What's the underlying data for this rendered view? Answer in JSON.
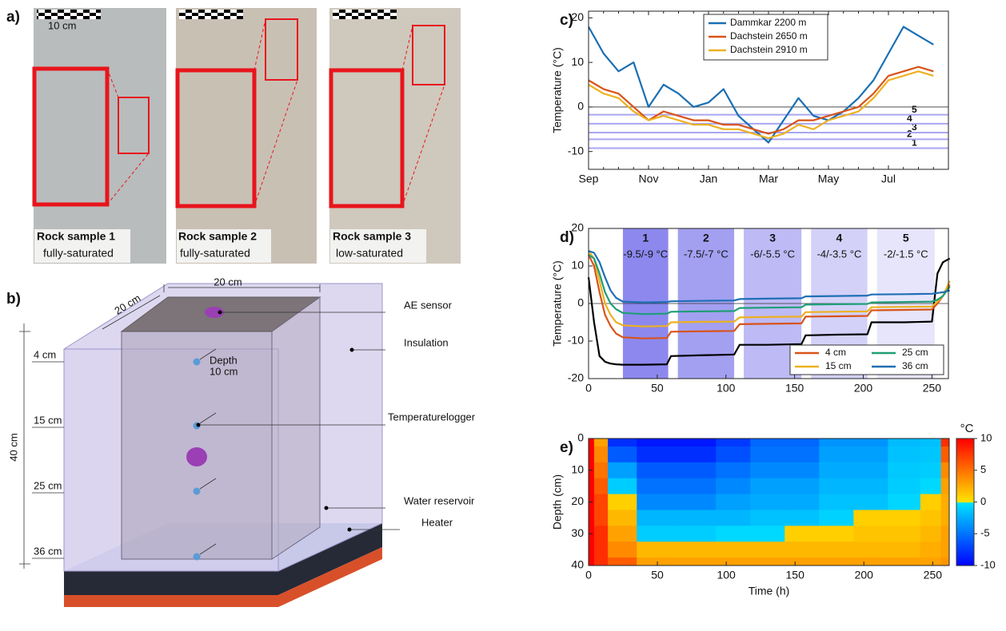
{
  "panel_a": {
    "label": "a)",
    "scale": "10 cm",
    "samples": [
      {
        "name": "Rock sample 1",
        "state": "fully-saturated"
      },
      {
        "name": "Rock sample 2",
        "state": "fully-saturated"
      },
      {
        "name": "Rock sample 3",
        "state": "low-saturated"
      }
    ]
  },
  "panel_b": {
    "label": "b)",
    "width": "20 cm",
    "depth": "20 cm",
    "height": "40 cm",
    "depths": [
      "4 cm",
      "15 cm",
      "25 cm",
      "36 cm"
    ],
    "logger_depth": [
      "Depth",
      "10 cm"
    ],
    "parts": {
      "sensor": "AE sensor",
      "insulation": "Insulation",
      "logger": "Temperaturelogger",
      "reservoir": "Water reservoir",
      "heater": "Heater"
    }
  },
  "chart_data": [
    {
      "type": "line",
      "label": "c)",
      "ylabel": "Temperature (°C)",
      "categories": [
        "Sep",
        null,
        null,
        null,
        "Nov",
        null,
        null,
        null,
        "Jan",
        null,
        null,
        null,
        "Mar",
        null,
        null,
        null,
        "May",
        null,
        null,
        null,
        "Jul",
        null,
        null,
        null
      ],
      "series": [
        {
          "name": "Dammkar 2200 m",
          "color": "#1a6fb3",
          "values": [
            18,
            12,
            8,
            10,
            0,
            5,
            3,
            0,
            1,
            4,
            -2,
            -5,
            -8,
            -3,
            2,
            -2,
            -3,
            -1,
            2,
            6,
            12,
            18,
            16,
            14
          ]
        },
        {
          "name": "Dachstein 2650 m",
          "color": "#d95319",
          "values": [
            6,
            4,
            3,
            0,
            -3,
            -1,
            -2,
            -3,
            -3,
            -4,
            -4,
            -5,
            -6,
            -5,
            -3,
            -3,
            -2,
            -1,
            0,
            3,
            7,
            8,
            9,
            8
          ]
        },
        {
          "name": "Dachstein 2910 m",
          "color": "#edb120",
          "values": [
            5,
            3,
            2,
            -1,
            -3,
            -2,
            -3,
            -4,
            -4,
            -5,
            -5,
            -6,
            -7,
            -6,
            -4,
            -5,
            -3,
            -2,
            -1,
            2,
            6,
            7,
            8,
            7
          ]
        }
      ],
      "reference_lines": [
        {
          "label": "1",
          "value": -9.25
        },
        {
          "label": "2",
          "value": -7.25
        },
        {
          "label": "3",
          "value": -5.75
        },
        {
          "label": "4",
          "value": -3.75
        },
        {
          "label": "5",
          "value": -1.75
        }
      ],
      "reference_color": "#a9a6f2",
      "zero_line": true,
      "ylim": [
        -14,
        21.5
      ],
      "yticks": [
        -10,
        0,
        10,
        20
      ],
      "legend": "top"
    },
    {
      "type": "line",
      "label": "d)",
      "ylabel": "Temperature (°C)",
      "x": [
        0,
        4,
        8,
        12,
        16,
        20,
        25,
        40,
        57,
        60,
        80,
        106,
        110,
        130,
        155,
        158,
        180,
        203,
        206,
        230,
        250,
        254,
        258,
        263
      ],
      "series": [
        {
          "color": "#000000",
          "values": [
            7,
            -5,
            -14,
            -15.5,
            -16,
            -16.2,
            -16.3,
            -16.3,
            -16.2,
            -14,
            -13.8,
            -13.6,
            -11,
            -11,
            -10.8,
            -8.5,
            -8.3,
            -8.2,
            -5,
            -5,
            -4.8,
            8,
            11,
            12
          ]
        },
        {
          "name": "4 cm",
          "color": "#d95319",
          "values": [
            13,
            10,
            3,
            -3,
            -6,
            -8,
            -9,
            -9.3,
            -9.2,
            -7.5,
            -7.4,
            -7.3,
            -5.5,
            -5.4,
            -5.3,
            -3.5,
            -3.4,
            -3.3,
            -1.8,
            -1.7,
            -1.6,
            0,
            2,
            5
          ]
        },
        {
          "name": "15 cm",
          "color": "#edb120",
          "values": [
            14,
            12,
            6,
            0,
            -3,
            -5,
            -5.8,
            -6.1,
            -6,
            -5,
            -4.9,
            -4.8,
            -3.7,
            -3.6,
            -3.5,
            -2.3,
            -2.2,
            -2.1,
            -1,
            -0.9,
            -0.8,
            0.5,
            2,
            6
          ]
        },
        {
          "name": "25 cm",
          "color": "#1f9e77",
          "values": [
            13,
            12,
            8,
            3,
            0,
            -1.5,
            -2.5,
            -2.8,
            -2.7,
            -2.2,
            -2.1,
            -2,
            -1.2,
            -1.1,
            -1,
            -0.3,
            -0.2,
            -0.1,
            0.3,
            0.4,
            0.5,
            1,
            2,
            4.5
          ]
        },
        {
          "name": "36 cm",
          "color": "#1f6fb4",
          "values": [
            14,
            13.5,
            11,
            7,
            3.5,
            1.5,
            0.5,
            0.3,
            0.4,
            0.6,
            0.7,
            0.8,
            1.2,
            1.3,
            1.4,
            1.9,
            2,
            2.1,
            2.4,
            2.5,
            2.6,
            2.8,
            3,
            3.5
          ]
        }
      ],
      "regions": [
        {
          "label": "1",
          "range": "-9.5/-9 °C",
          "x": [
            25,
            58
          ],
          "color": "#8c88ee"
        },
        {
          "label": "2",
          "range": "-7.5/-7 °C",
          "x": [
            65,
            106
          ],
          "color": "#a3a0f1"
        },
        {
          "label": "3",
          "range": "-6/-5.5 °C",
          "x": [
            113,
            155
          ],
          "color": "#bdbaf5"
        },
        {
          "label": "4",
          "range": "-4/-3.5 °C",
          "x": [
            162,
            203
          ],
          "color": "#d3d1f8"
        },
        {
          "label": "5",
          "range": "-2/-1.5 °C",
          "x": [
            210,
            252
          ],
          "color": "#e6e5fb"
        }
      ],
      "xlim": [
        0,
        262
      ],
      "xticks": [
        0,
        50,
        100,
        150,
        200,
        250
      ],
      "ylim": [
        -20,
        20
      ],
      "yticks": [
        -20,
        -10,
        0,
        10,
        20
      ],
      "zero_line": true,
      "legend": "bottom-right"
    },
    {
      "type": "heatmap",
      "label": "e)",
      "xlabel": "Time (h)",
      "ylabel": "Depth (cm)",
      "colorbar_title": "°C",
      "x": [
        0,
        8,
        20,
        50,
        80,
        105,
        130,
        155,
        180,
        205,
        230,
        252,
        260
      ],
      "y": [
        0,
        5,
        10,
        15,
        20,
        25,
        30,
        35,
        40
      ],
      "z": [
        [
          10,
          10,
          10,
          10,
          10,
          10,
          10,
          10,
          10
        ],
        [
          3,
          4,
          5,
          6,
          7,
          7,
          8,
          8,
          8
        ],
        [
          -8,
          -6,
          -3,
          -1,
          1,
          2,
          3,
          4,
          6
        ],
        [
          -9,
          -8,
          -6,
          -5,
          -4,
          -2,
          -1,
          2,
          3
        ],
        [
          -9,
          -8,
          -6,
          -5,
          -4,
          -2,
          -1,
          2,
          3
        ],
        [
          -7.5,
          -6.5,
          -5,
          -4,
          -3,
          -2,
          -0.5,
          2,
          3
        ],
        [
          -5.5,
          -5,
          -4,
          -3,
          -2.5,
          -1.5,
          -0.5,
          2,
          3
        ],
        [
          -5.5,
          -5,
          -4,
          -3,
          -2.5,
          -1.5,
          1,
          2,
          3
        ],
        [
          -3.5,
          -3,
          -2.5,
          -2,
          -1.5,
          -0.8,
          1,
          2,
          3
        ],
        [
          -3.5,
          -3,
          -2.5,
          -2,
          -1.5,
          1,
          1.5,
          2,
          3
        ],
        [
          -1.8,
          -1.5,
          -1.2,
          -1,
          -0.6,
          1,
          1.5,
          2,
          3
        ],
        [
          -1.6,
          -1.3,
          -1,
          -0.5,
          1,
          1.5,
          2,
          2.5,
          3
        ],
        [
          8,
          6,
          4,
          3,
          2.5,
          2.5,
          3,
          3,
          3.5
        ]
      ],
      "colormap": [
        "#0000ff",
        "#00e4ff",
        "#ffe600",
        "#ff0000"
      ],
      "xlim": [
        0,
        262
      ],
      "xticks": [
        0,
        50,
        100,
        150,
        200,
        250
      ],
      "ylim": [
        0,
        40
      ],
      "yticks": [
        0,
        10,
        20,
        30,
        40
      ],
      "invert_y": true,
      "zlim": [
        -10,
        10
      ],
      "zticks": [
        -10,
        -5,
        0,
        5,
        10
      ]
    }
  ]
}
